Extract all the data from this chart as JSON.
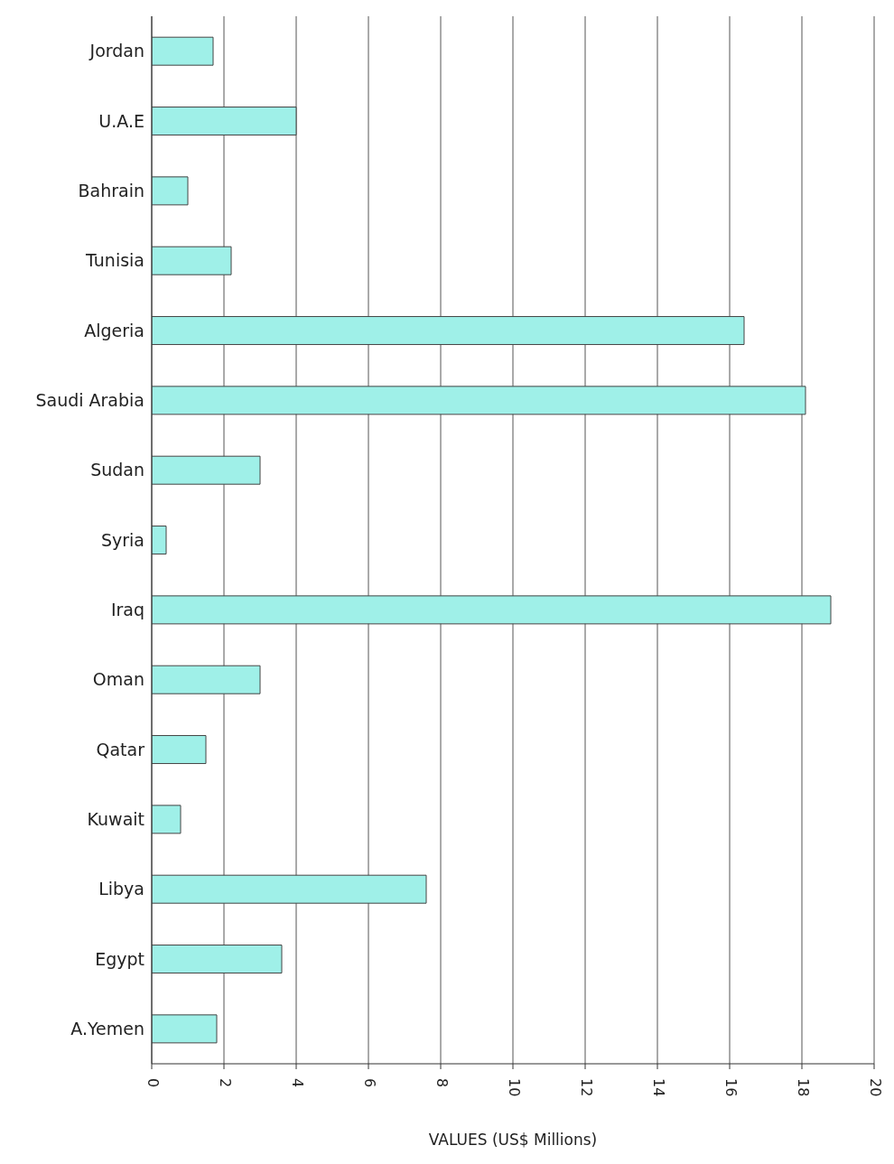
{
  "chart_data": {
    "type": "bar",
    "orientation": "horizontal",
    "xlabel": "VALUES (US$ Millions)",
    "categories": [
      "Jordan",
      "U.A.E",
      "Bahrain",
      "Tunisia",
      "Algeria",
      "Saudi Arabia",
      "Sudan",
      "Syria",
      "Iraq",
      "Oman",
      "Qatar",
      "Kuwait",
      "Libya",
      "Egypt",
      "A.Yemen"
    ],
    "values": [
      1.7,
      4.0,
      1.0,
      2.2,
      16.4,
      18.1,
      3.0,
      0.4,
      18.8,
      3.0,
      1.5,
      0.8,
      7.6,
      3.6,
      1.8
    ],
    "color": "#9ff0e8",
    "xlim": [
      0,
      20
    ],
    "xticks": [
      0,
      2,
      4,
      6,
      8,
      10,
      12,
      14,
      16,
      18,
      20
    ],
    "grid": "x",
    "legend": false
  }
}
